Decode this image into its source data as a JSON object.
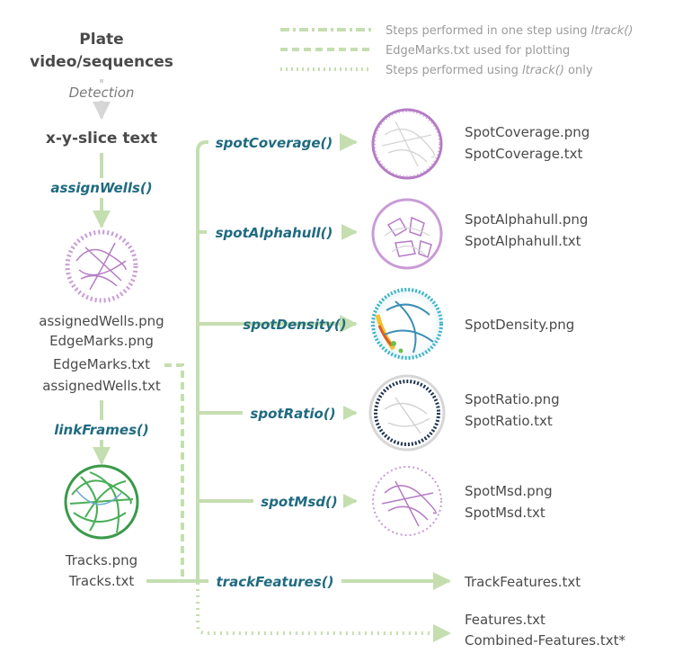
{
  "legend": {
    "dashdot": {
      "prefix": "Steps performed in one step using ",
      "fn": "ltrack()",
      "suffix": ""
    },
    "dashed": {
      "text": "EdgeMarks.txt used for plotting"
    },
    "dotted": {
      "prefix": "Steps performed using ",
      "fn": "ltrack()",
      "suffix": " only"
    }
  },
  "nodes": {
    "plate_line1": "Plate",
    "plate_line2": "video/sequences",
    "detection": "Detection",
    "xy_text": "x-y-slice text",
    "assign_wells": "assignWells()",
    "assigned_outputs": [
      "assignedWells.png",
      "EdgeMarks.png",
      "EdgeMarks.txt",
      "assignedWells.txt"
    ],
    "link_frames": "linkFrames()",
    "tracks_outputs": [
      "Tracks.png",
      "Tracks.txt"
    ]
  },
  "functions": [
    {
      "label": "spotCoverage()",
      "outputs": [
        "SpotCoverage.png",
        "SpotCoverage.txt"
      ],
      "icon": "spot-coverage-thumbnail"
    },
    {
      "label": "spotAlphahull()",
      "outputs": [
        "SpotAlphahull.png",
        "SpotAlphahull.txt"
      ],
      "icon": "spot-alphahull-thumbnail"
    },
    {
      "label": "spotDensity()",
      "outputs": [
        "SpotDensity.png"
      ],
      "icon": "spot-density-thumbnail"
    },
    {
      "label": "spotRatio()",
      "outputs": [
        "SpotRatio.png",
        "SpotRatio.txt"
      ],
      "icon": "spot-ratio-thumbnail"
    },
    {
      "label": "spotMsd()",
      "outputs": [
        "SpotMsd.png",
        "SpotMsd.txt"
      ],
      "icon": "spot-msd-thumbnail"
    },
    {
      "label": "trackFeatures()",
      "outputs": [
        "TrackFeatures.txt"
      ],
      "icon": ""
    }
  ],
  "final_outputs": [
    "Features.txt",
    "Combined-Features.txt*"
  ],
  "colors": {
    "arrow": "#c5deb0",
    "arrow_grey": "#d6d6d6",
    "function_text": "#1f6b80",
    "main_text": "#4a4a4a",
    "legend_text": "#9b9b9b",
    "wells_purple": "#b57cc4",
    "tracks_green": "#3a9a4a",
    "ratio_dark": "#1f3550"
  }
}
